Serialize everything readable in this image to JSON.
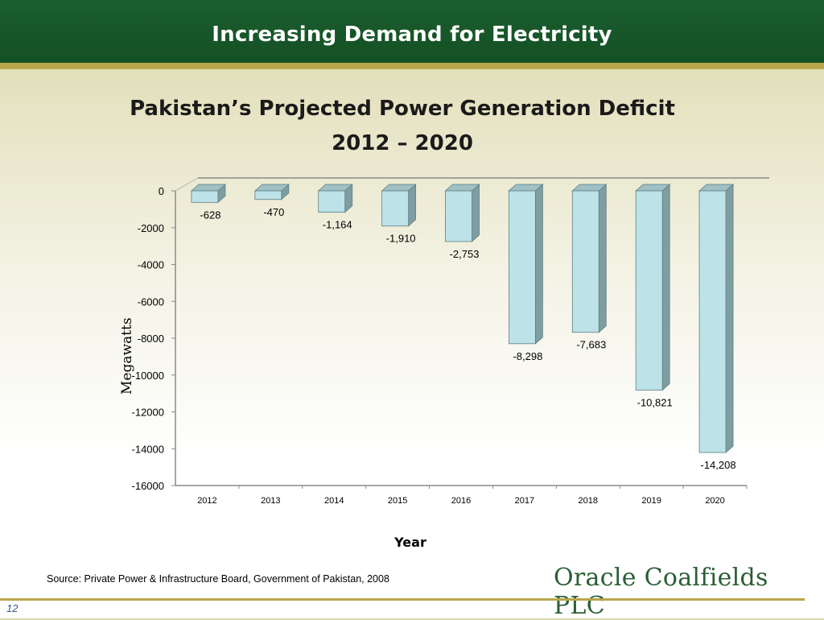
{
  "header": {
    "title": "Increasing Demand for Electricity"
  },
  "chart_data": {
    "type": "bar",
    "title_line1": "Pakistan’s Projected Power Generation Deficit",
    "title_line2": "2012 – 2020",
    "xlabel": "Year",
    "ylabel": "Megawatts",
    "categories": [
      "2012",
      "2013",
      "2014",
      "2015",
      "2016",
      "2017",
      "2018",
      "2019",
      "2020"
    ],
    "values": [
      -628,
      -470,
      -1164,
      -1910,
      -2753,
      -8298,
      -7683,
      -10821,
      -14208
    ],
    "data_labels": [
      "-628",
      "-470",
      "-1,164",
      "-1,910",
      "-2,753",
      "-8,298",
      "-7,683",
      "-10,821",
      "-14,208"
    ],
    "ylim": [
      -16000,
      0
    ],
    "yticks": [
      0,
      -2000,
      -4000,
      -6000,
      -8000,
      -10000,
      -12000,
      -14000,
      -16000
    ],
    "bar_color": "#bde3e8",
    "bar_side_color": "#7f9ea2",
    "bar_top_color": "#9fc0c4"
  },
  "footer": {
    "source": "Source: Private Power & Infrastructure Board, Government of Pakistan, 2008",
    "logo": "Oracle Coalfields PLC",
    "page_number": "12"
  },
  "colors": {
    "header_bg": "#1b5e2e",
    "accent": "#b9a64a"
  }
}
